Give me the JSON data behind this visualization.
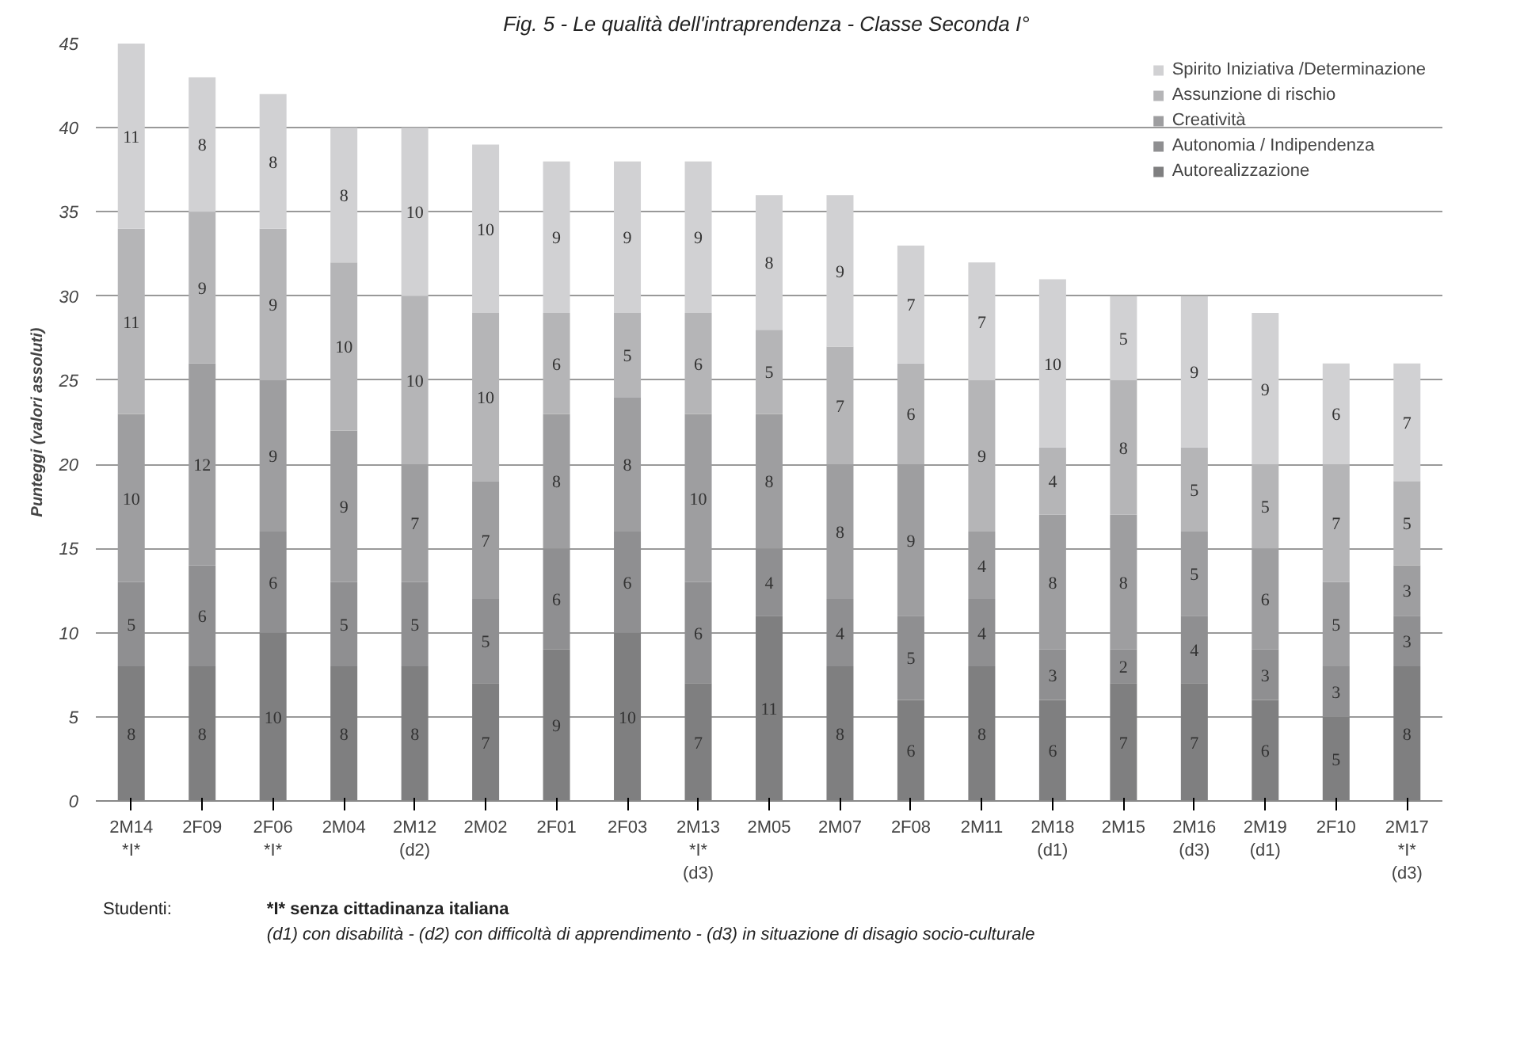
{
  "chart_data": {
    "type": "bar",
    "stacked": true,
    "title": "Fig. 5 - Le qualità dell'intraprendenza  - Classe Seconda I°",
    "ylabel": "Punteggi (valori assoluti)",
    "categories": [
      "2M14\n*I*",
      "2F09",
      "2F06\n*I*",
      "2M04",
      "2M12\n(d2)",
      "2M02",
      "2F01",
      "2F03",
      "2M13\n*I*\n(d3)",
      "2M05",
      "2M07",
      "2F08",
      "2M11",
      "2M18\n(d1)",
      "2M15",
      "2M16\n(d3)",
      "2M19\n(d1)",
      "2F10",
      "2M17\n*I*\n(d3)"
    ],
    "series": [
      {
        "name": "Autorealizzazione",
        "color": "#7f7f80",
        "values": [
          8,
          8,
          10,
          8,
          8,
          7,
          9,
          10,
          7,
          11,
          8,
          6,
          8,
          6,
          7,
          7,
          6,
          5,
          8
        ]
      },
      {
        "name": "Autonomia / Indipendenza",
        "color": "#8f8f91",
        "values": [
          5,
          6,
          6,
          5,
          5,
          5,
          6,
          6,
          6,
          4,
          4,
          5,
          4,
          3,
          2,
          4,
          3,
          3,
          3
        ]
      },
      {
        "name": "Creatività",
        "color": "#9e9ea0",
        "values": [
          10,
          12,
          9,
          9,
          7,
          7,
          8,
          8,
          10,
          8,
          8,
          9,
          4,
          8,
          8,
          5,
          6,
          5,
          3
        ]
      },
      {
        "name": "Assunzione di rischio",
        "color": "#b5b5b7",
        "values": [
          11,
          9,
          9,
          10,
          10,
          10,
          6,
          5,
          6,
          5,
          7,
          6,
          9,
          4,
          8,
          5,
          5,
          7,
          5
        ]
      },
      {
        "name": "Spirito Iniziativa /Determinazione",
        "color": "#d1d1d3",
        "values": [
          11,
          8,
          8,
          8,
          10,
          10,
          9,
          9,
          9,
          8,
          9,
          7,
          7,
          10,
          5,
          9,
          9,
          6,
          7
        ]
      }
    ],
    "ylim": [
      0,
      45
    ],
    "yticks": [
      0,
      5,
      10,
      15,
      20,
      25,
      30,
      35,
      40,
      45
    ],
    "grid": "y",
    "legend": "top right",
    "data_labels": true,
    "annotations": [
      "Studenti:",
      "*I* senza cittadinanza italiana",
      "(d1) con disabilità - (d2) con difficoltà di apprendimento - (d3) in situazione di disagio socio-culturale"
    ]
  }
}
